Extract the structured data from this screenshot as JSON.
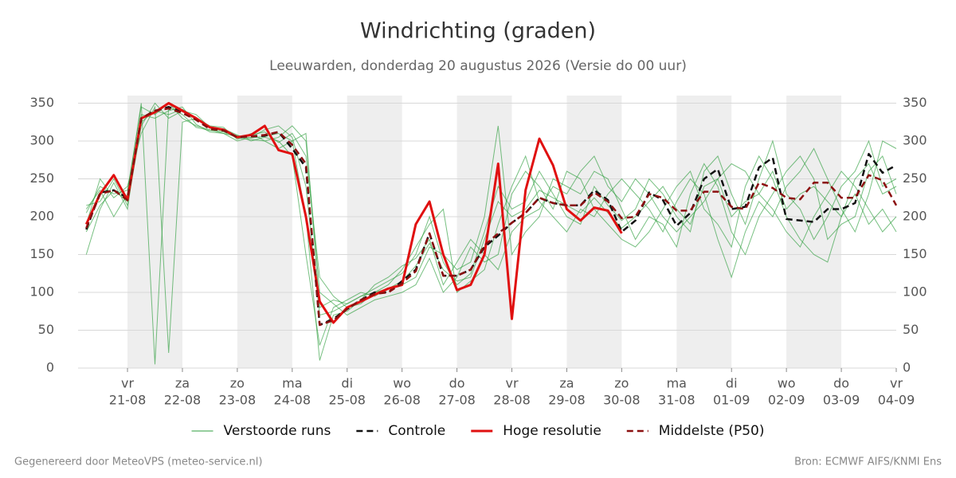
{
  "chart_data": {
    "type": "line",
    "title": "Windrichting (graden)",
    "subtitle": "Leeuwarden, donderdag 20 augustus 2026 (Versie do 00 uur)",
    "footer_left": "Gegenereerd door MeteoVPS (meteo-service.nl)",
    "footer_right": "Bron: ECMWF AIFS/KNMI Ens",
    "x": [
      -0.75,
      -0.5,
      -0.25,
      0,
      0.25,
      0.5,
      0.75,
      1,
      1.25,
      1.5,
      1.75,
      2,
      2.25,
      2.5,
      2.75,
      3,
      3.25,
      3.5,
      3.75,
      4,
      4.25,
      4.5,
      4.75,
      5,
      5.25,
      5.5,
      5.75,
      6,
      6.25,
      6.5,
      6.75,
      7,
      7.25,
      7.5,
      7.75,
      8,
      8.25,
      8.5,
      8.75,
      9,
      9.25,
      9.5,
      9.75,
      10,
      10.25,
      10.5,
      10.75,
      11,
      11.25,
      11.5,
      11.75,
      12,
      12.25,
      12.5,
      12.75,
      13,
      13.25,
      13.5,
      13.75,
      14
    ],
    "xlim": [
      -0.9,
      14
    ],
    "xticks": [
      {
        "value": 0,
        "label": "vr",
        "date": "21-08"
      },
      {
        "value": 1,
        "label": "za",
        "date": "22-08"
      },
      {
        "value": 2,
        "label": "zo",
        "date": "23-08"
      },
      {
        "value": 3,
        "label": "ma",
        "date": "24-08"
      },
      {
        "value": 4,
        "label": "di",
        "date": "25-08"
      },
      {
        "value": 5,
        "label": "wo",
        "date": "26-08"
      },
      {
        "value": 6,
        "label": "do",
        "date": "27-08"
      },
      {
        "value": 7,
        "label": "vr",
        "date": "28-08"
      },
      {
        "value": 8,
        "label": "za",
        "date": "29-08"
      },
      {
        "value": 9,
        "label": "zo",
        "date": "30-08"
      },
      {
        "value": 10,
        "label": "ma",
        "date": "31-08"
      },
      {
        "value": 11,
        "label": "di",
        "date": "01-09"
      },
      {
        "value": 12,
        "label": "wo",
        "date": "02-09"
      },
      {
        "value": 13,
        "label": "do",
        "date": "03-09"
      },
      {
        "value": 14,
        "label": "vr",
        "date": "04-09"
      }
    ],
    "ylim": [
      0,
      360
    ],
    "yticks": [
      0,
      50,
      100,
      150,
      200,
      250,
      300,
      350
    ],
    "grid": true,
    "shaded_bands": [
      [
        0,
        1
      ],
      [
        2,
        3
      ],
      [
        4,
        5
      ],
      [
        6,
        7
      ],
      [
        8,
        9
      ],
      [
        10,
        11
      ],
      [
        12,
        13
      ]
    ],
    "shade_color": "#eeeeee",
    "ensemble": {
      "name": "Verstoorde runs",
      "color": "#2e9e3e",
      "members": [
        [
          205,
          240,
          230,
          235,
          345,
          335,
          350,
          330,
          320,
          315,
          310,
          300,
          305,
          315,
          320,
          305,
          240,
          70,
          75,
          85,
          95,
          105,
          115,
          125,
          150,
          200,
          140,
          110,
          125,
          180,
          240,
          210,
          220,
          260,
          230,
          200,
          190,
          240,
          215,
          195,
          210,
          250,
          230,
          200,
          180,
          260,
          280,
          230,
          190,
          250,
          300,
          230,
          210,
          170,
          200,
          240,
          260,
          300,
          240,
          250
        ],
        [
          215,
          220,
          250,
          215,
          320,
          350,
          330,
          340,
          335,
          318,
          316,
          308,
          300,
          305,
          300,
          280,
          150,
          30,
          80,
          90,
          100,
          95,
          105,
          110,
          120,
          160,
          150,
          130,
          140,
          200,
          320,
          150,
          180,
          200,
          250,
          240,
          230,
          260,
          250,
          210,
          170,
          200,
          190,
          160,
          230,
          270,
          240,
          180,
          150,
          200,
          230,
          260,
          280,
          250,
          170,
          190,
          200,
          260,
          280,
          230
        ],
        [
          190,
          250,
          225,
          240,
          310,
          345,
          20,
          325,
          330,
          320,
          318,
          302,
          310,
          300,
          305,
          320,
          300,
          100,
          85,
          70,
          80,
          90,
          95,
          100,
          110,
          145,
          100,
          120,
          160,
          140,
          150,
          230,
          260,
          240,
          210,
          260,
          250,
          210,
          190,
          170,
          160,
          180,
          210,
          240,
          260,
          210,
          190,
          160,
          240,
          280,
          250,
          200,
          170,
          150,
          140,
          200,
          230,
          190,
          210,
          180
        ],
        [
          150,
          210,
          245,
          210,
          335,
          330,
          340,
          345,
          322,
          312,
          310,
          306,
          308,
          312,
          298,
          310,
          280,
          120,
          95,
          80,
          85,
          100,
          110,
          130,
          160,
          190,
          210,
          100,
          115,
          130,
          190,
          240,
          280,
          220,
          200,
          180,
          210,
          200,
          230,
          250,
          230,
          210,
          180,
          220,
          250,
          230,
          170,
          120,
          180,
          220,
          200,
          240,
          260,
          290,
          250,
          210,
          180,
          230,
          300,
          290
        ],
        [
          210,
          235,
          200,
          230,
          350,
          5,
          345,
          335,
          318,
          314,
          312,
          304,
          302,
          300,
          290,
          300,
          200,
          10,
          70,
          75,
          90,
          110,
          120,
          135,
          145,
          170,
          110,
          140,
          170,
          150,
          130,
          180,
          200,
          210,
          240,
          230,
          260,
          280,
          240,
          220,
          250,
          230,
          200,
          180,
          200,
          220,
          250,
          270,
          260,
          230,
          210,
          180,
          160,
          200,
          230,
          260,
          240,
          210,
          180,
          200
        ],
        [
          180,
          215,
          235,
          220,
          325,
          340,
          335,
          342,
          330,
          317,
          313,
          307,
          304,
          306,
          310,
          300,
          310,
          80,
          90,
          85,
          95,
          100,
          105,
          115,
          135,
          165,
          130,
          115,
          120,
          170,
          220,
          200,
          210,
          235,
          225,
          215,
          205,
          225,
          205,
          185,
          200,
          220,
          240,
          210,
          190,
          240,
          250,
          200,
          220,
          230,
          260,
          210,
          230,
          240,
          220,
          200,
          250,
          270,
          230,
          240
        ]
      ]
    },
    "series": [
      {
        "name": "Controle",
        "color": "#111111",
        "dash": true,
        "values": [
          183,
          232,
          235,
          225,
          330,
          340,
          345,
          338,
          328,
          316,
          314,
          305,
          306,
          307,
          312,
          290,
          265,
          57,
          65,
          78,
          90,
          100,
          100,
          115,
          130,
          178,
          122,
          122,
          130,
          160,
          175,
          192,
          205,
          225,
          218,
          215,
          215,
          235,
          222,
          180,
          195,
          232,
          222,
          188,
          205,
          250,
          263,
          210,
          213,
          265,
          278,
          197,
          195,
          193,
          210,
          210,
          218,
          283,
          258,
          268
        ]
      },
      {
        "name": "Hoge resolutie",
        "color": "#e01010",
        "dash": false,
        "values": [
          190,
          230,
          255,
          222,
          330,
          338,
          350,
          340,
          330,
          318,
          315,
          305,
          308,
          320,
          288,
          283,
          200,
          88,
          60,
          80,
          88,
          97,
          105,
          110,
          190,
          220,
          150,
          103,
          110,
          150,
          270,
          65,
          235,
          303,
          268,
          210,
          195,
          212,
          208,
          178,
          null,
          null,
          null,
          null,
          null,
          null,
          null,
          null,
          null,
          null,
          null,
          null,
          null,
          null,
          null,
          null,
          null,
          null,
          null,
          null
        ]
      },
      {
        "name": "Middelste (P50)",
        "color": "#8b1010",
        "dash": true,
        "values": [
          185,
          230,
          235,
          222,
          330,
          340,
          343,
          337,
          328,
          316,
          314,
          305,
          306,
          308,
          312,
          295,
          270,
          57,
          63,
          78,
          90,
          98,
          100,
          112,
          128,
          178,
          122,
          122,
          130,
          162,
          178,
          192,
          205,
          225,
          218,
          215,
          215,
          232,
          220,
          198,
          200,
          230,
          225,
          208,
          208,
          233,
          233,
          213,
          210,
          245,
          238,
          225,
          223,
          245,
          245,
          225,
          225,
          255,
          248,
          215
        ]
      }
    ]
  }
}
